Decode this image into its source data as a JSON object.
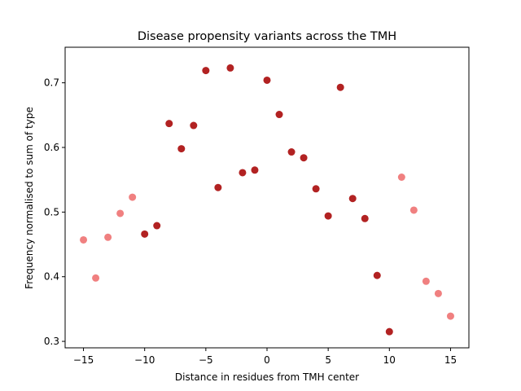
{
  "chart_data": {
    "type": "scatter",
    "title": "Disease propensity variants across the TMH",
    "xlabel": "Distance in residues from TMH center",
    "ylabel": "Frequency normalised to sum of type",
    "xlim": [
      -16.5,
      16.5
    ],
    "ylim": [
      0.29,
      0.755
    ],
    "xticks": [
      -15,
      -10,
      -5,
      0,
      5,
      10,
      15
    ],
    "yticks": [
      0.3,
      0.4,
      0.5,
      0.6,
      0.7
    ],
    "grid": false,
    "colors": {
      "outer": "#f08080",
      "inner": "#b22222"
    },
    "points": [
      {
        "x": -15,
        "y": 0.457,
        "group": "outer"
      },
      {
        "x": -14,
        "y": 0.398,
        "group": "outer"
      },
      {
        "x": -13,
        "y": 0.461,
        "group": "outer"
      },
      {
        "x": -12,
        "y": 0.498,
        "group": "outer"
      },
      {
        "x": -11,
        "y": 0.523,
        "group": "outer"
      },
      {
        "x": -10,
        "y": 0.466,
        "group": "inner"
      },
      {
        "x": -9,
        "y": 0.479,
        "group": "inner"
      },
      {
        "x": -8,
        "y": 0.637,
        "group": "inner"
      },
      {
        "x": -7,
        "y": 0.598,
        "group": "inner"
      },
      {
        "x": -6,
        "y": 0.634,
        "group": "inner"
      },
      {
        "x": -5,
        "y": 0.719,
        "group": "inner"
      },
      {
        "x": -4,
        "y": 0.538,
        "group": "inner"
      },
      {
        "x": -3,
        "y": 0.723,
        "group": "inner"
      },
      {
        "x": -2,
        "y": 0.561,
        "group": "inner"
      },
      {
        "x": -1,
        "y": 0.565,
        "group": "inner"
      },
      {
        "x": 0,
        "y": 0.704,
        "group": "inner"
      },
      {
        "x": 1,
        "y": 0.651,
        "group": "inner"
      },
      {
        "x": 2,
        "y": 0.593,
        "group": "inner"
      },
      {
        "x": 3,
        "y": 0.584,
        "group": "inner"
      },
      {
        "x": 4,
        "y": 0.536,
        "group": "inner"
      },
      {
        "x": 5,
        "y": 0.494,
        "group": "inner"
      },
      {
        "x": 6,
        "y": 0.693,
        "group": "inner"
      },
      {
        "x": 7,
        "y": 0.521,
        "group": "inner"
      },
      {
        "x": 8,
        "y": 0.49,
        "group": "inner"
      },
      {
        "x": 9,
        "y": 0.402,
        "group": "inner"
      },
      {
        "x": 10,
        "y": 0.315,
        "group": "inner"
      },
      {
        "x": 11,
        "y": 0.554,
        "group": "outer"
      },
      {
        "x": 12,
        "y": 0.503,
        "group": "outer"
      },
      {
        "x": 13,
        "y": 0.393,
        "group": "outer"
      },
      {
        "x": 14,
        "y": 0.374,
        "group": "outer"
      },
      {
        "x": 15,
        "y": 0.339,
        "group": "outer"
      }
    ]
  }
}
